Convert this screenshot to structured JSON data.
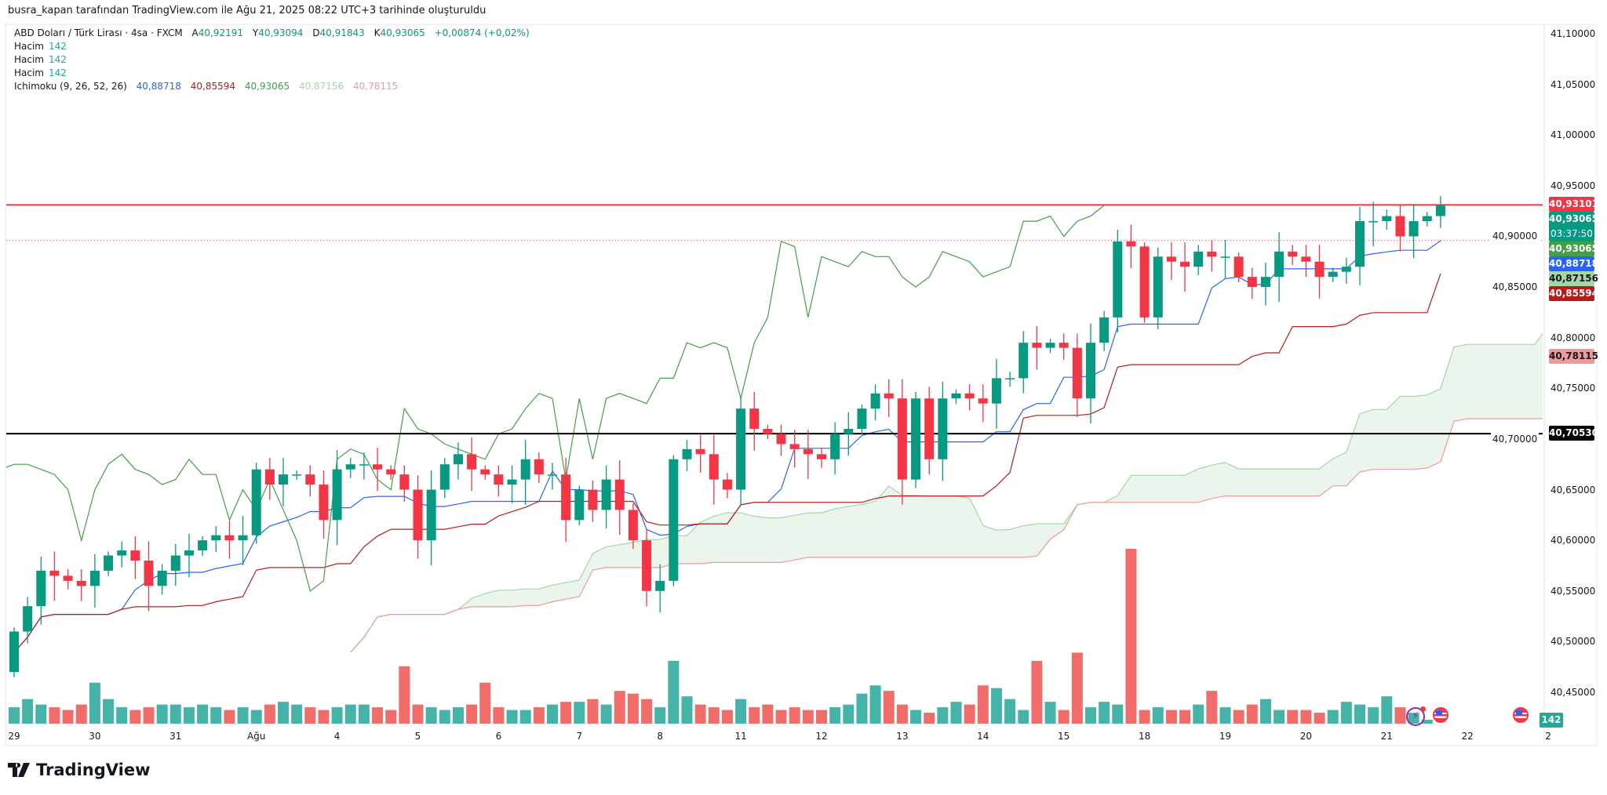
{
  "caption": "busra_kapan tarafından TradingView.com ile Ağu 21, 2025 08:22 UTC+3 tarihinde oluşturuldu",
  "legend": {
    "symbol": "ABD Doları / Türk Lirası · 4sa · FXCM",
    "o_label": "A",
    "o": "40,92191",
    "h_label": "Y",
    "h": "40,93094",
    "l_label": "D",
    "l": "40,91843",
    "c_label": "K",
    "c": "40,93065",
    "change": "+0,00874 (+0,02%)",
    "volume_rows": [
      {
        "label": "Hacim",
        "value": "142"
      },
      {
        "label": "Hacim",
        "value": "142"
      },
      {
        "label": "Hacim",
        "value": "142"
      }
    ],
    "ichimoku_label": "Ichimoku (9, 26, 52, 26)",
    "ichimoku_values": [
      "40,88718",
      "40,85594",
      "40,93065",
      "40,87156",
      "40,78115"
    ]
  },
  "colors": {
    "up": "#089981",
    "down": "#f23645",
    "vol_up": "#26a69a",
    "vol_down": "#ef5350",
    "tenkan": "#2962ff",
    "kijun": "#b71c1c",
    "chikou": "#43a047",
    "span_a": "#a5d6a7",
    "span_b": "#ef9a9a"
  },
  "price_tags": [
    {
      "text": "40,93101",
      "bg": "#f23645",
      "fg": "#ffffff",
      "price": 40.93101
    },
    {
      "text": "40,93065",
      "sub": "03:37:50",
      "bg": "#089981",
      "fg": "#ffffff",
      "price": 40.93065
    },
    {
      "text": "40,93065",
      "bg": "#43a047",
      "fg": "#ffffff",
      "price": 40.93065
    },
    {
      "text": "40,88718",
      "bg": "#2962ff",
      "fg": "#ffffff",
      "price": 40.88718
    },
    {
      "text": "40,87156",
      "bg": "#a5d6a7",
      "fg": "#131722",
      "price": 40.87156
    },
    {
      "text": "40,85594",
      "bg": "#b71c1c",
      "fg": "#ffffff",
      "price": 40.85594
    },
    {
      "text": "40,78115",
      "bg": "#ef9a9a",
      "fg": "#131722",
      "price": 40.78115
    },
    {
      "text": "40,70530",
      "bg": "#000000",
      "fg": "#ffffff",
      "price": 40.7053
    }
  ],
  "volume_tag": "142",
  "brand": "TradingView",
  "chart_data": {
    "type": "candlestick",
    "ylim": [
      40.45,
      41.1
    ],
    "y_ticks": [
      "41,10000",
      "41,05000",
      "41,00000",
      "40,95000",
      "40,90000",
      "40,85000",
      "40,80000",
      "40,75000",
      "40,70000",
      "40,65000",
      "40,60000",
      "40,55000",
      "40,50000",
      "40,45000"
    ],
    "y_tick_values": [
      41.1,
      41.05,
      41.0,
      40.95,
      40.9,
      40.85,
      40.8,
      40.75,
      40.7,
      40.65,
      40.6,
      40.55,
      40.5,
      40.45
    ],
    "x_ticks": [
      "29",
      "30",
      "31",
      "Ağu",
      "4",
      "5",
      "6",
      "7",
      "8",
      "11",
      "12",
      "13",
      "14",
      "15",
      "18",
      "19",
      "20",
      "21",
      "22",
      "2"
    ],
    "bars_per_day": 6,
    "horizontal_lines": [
      {
        "price": 40.93101,
        "color": "#f23645",
        "style": "solid"
      },
      {
        "price": 40.7053,
        "color": "#000000",
        "style": "solid"
      },
      {
        "price": 40.896,
        "color": "#f23645",
        "style": "dotted"
      }
    ],
    "first_open": 40.47,
    "closes": [
      40.51,
      40.535,
      40.57,
      40.565,
      40.56,
      40.555,
      40.57,
      40.585,
      40.59,
      40.58,
      40.555,
      40.57,
      40.585,
      40.59,
      40.6,
      40.605,
      40.6,
      40.605,
      40.67,
      40.655,
      40.665,
      40.665,
      40.655,
      40.62,
      40.67,
      40.675,
      40.675,
      40.67,
      40.665,
      40.65,
      40.6,
      40.65,
      40.675,
      40.685,
      40.67,
      40.665,
      40.655,
      40.66,
      40.68,
      40.665,
      40.665,
      40.62,
      40.65,
      40.63,
      40.66,
      40.63,
      40.6,
      40.55,
      40.56,
      40.68,
      40.69,
      40.685,
      40.66,
      40.65,
      40.73,
      40.71,
      40.705,
      40.695,
      40.69,
      40.685,
      40.68,
      40.705,
      40.71,
      40.73,
      40.745,
      40.74,
      40.66,
      40.74,
      40.68,
      40.74,
      40.745,
      40.74,
      40.735,
      40.76,
      40.76,
      40.795,
      40.79,
      40.795,
      40.79,
      40.74,
      40.795,
      40.82,
      40.895,
      40.89,
      40.82,
      40.88,
      40.875,
      40.87,
      40.885,
      40.88,
      40.88,
      40.86,
      40.85,
      40.86,
      40.885,
      40.88,
      40.875,
      40.86,
      40.865,
      40.87,
      40.915,
      40.915,
      40.92,
      40.9,
      40.915,
      40.92,
      40.93065
    ],
    "volumes": [
      600,
      900,
      700,
      600,
      500,
      700,
      1500,
      900,
      600,
      500,
      600,
      700,
      700,
      600,
      700,
      600,
      500,
      600,
      500,
      700,
      800,
      700,
      600,
      500,
      600,
      700,
      700,
      600,
      500,
      2100,
      700,
      600,
      500,
      600,
      700,
      1500,
      600,
      500,
      500,
      600,
      700,
      800,
      800,
      900,
      700,
      1200,
      1100,
      900,
      600,
      2300,
      1000,
      700,
      600,
      500,
      900,
      600,
      700,
      500,
      600,
      500,
      500,
      600,
      700,
      1100,
      1400,
      1200,
      700,
      500,
      400,
      600,
      800,
      700,
      1400,
      1300,
      900,
      500,
      2300,
      800,
      500,
      2600,
      600,
      800,
      700,
      6400,
      500,
      600,
      500,
      500,
      700,
      1200,
      600,
      500,
      700,
      900,
      500,
      500,
      500,
      400,
      500,
      800,
      700,
      600,
      1000,
      600,
      400,
      142
    ]
  }
}
